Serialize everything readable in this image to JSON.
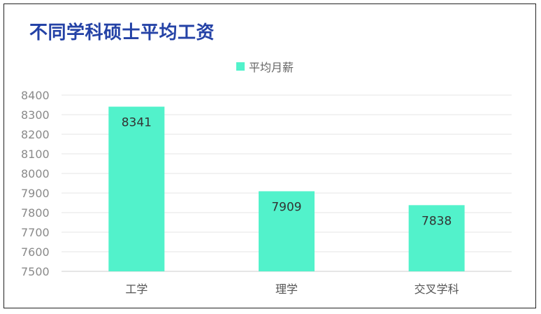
{
  "chart_data": {
    "type": "bar",
    "title": "不同学科硕士平均工资",
    "categories": [
      "工学",
      "理学",
      "交叉学科"
    ],
    "series": [
      {
        "name": "平均月薪",
        "values": [
          8341,
          7909,
          7838
        ]
      }
    ],
    "ylim": [
      7500,
      8400
    ],
    "yticks": [
      7500,
      7600,
      7700,
      7800,
      7900,
      8000,
      8100,
      8200,
      8300,
      8400
    ],
    "grid": true,
    "legend_position": "top-center",
    "colors": {
      "bar": "#52f2cb",
      "title": "#2442a6"
    }
  }
}
